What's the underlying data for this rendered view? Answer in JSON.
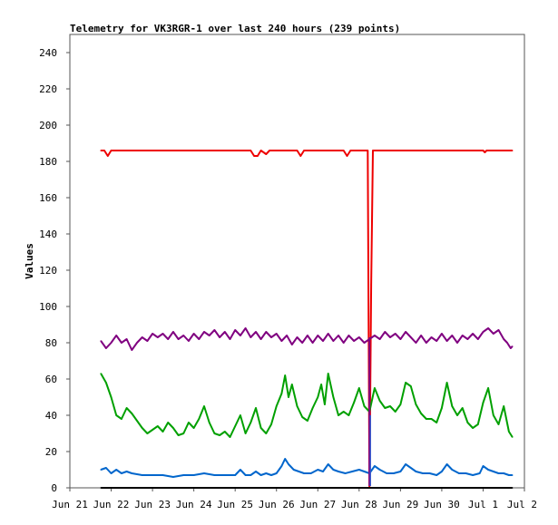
{
  "chart_data": {
    "type": "line",
    "title": "Telemetry for VK3RGR-1 over last 240 hours (239 points)",
    "xlabel": "",
    "ylabel": "Values",
    "ylim": [
      0,
      250
    ],
    "yticks": [
      0,
      20,
      40,
      60,
      80,
      100,
      120,
      140,
      160,
      180,
      200,
      220,
      240
    ],
    "xlim": [
      "2023-06-21",
      "2023-07-02"
    ],
    "xtick_labels": [
      "Jun 21",
      "Jun 22",
      "Jun 23",
      "Jun 24",
      "Jun 25",
      "Jun 26",
      "Jun 27",
      "Jun 28",
      "Jun 29",
      "Jun 30",
      "Jul 1",
      "Jul 2"
    ],
    "grid": false,
    "legend": "none",
    "series": [
      {
        "color": "#ee0000",
        "points": [
          [
            "2023-06-21 18:00",
            186
          ],
          [
            "2023-06-21 20:00",
            186
          ],
          [
            "2023-06-21 22:00",
            183
          ],
          [
            "2023-06-22 00:00",
            186
          ],
          [
            "2023-06-25 09:00",
            186
          ],
          [
            "2023-06-25 11:00",
            183
          ],
          [
            "2023-06-25 13:00",
            183
          ],
          [
            "2023-06-25 15:00",
            186
          ],
          [
            "2023-06-25 18:00",
            184
          ],
          [
            "2023-06-25 20:00",
            186
          ],
          [
            "2023-06-26 12:00",
            186
          ],
          [
            "2023-06-26 14:00",
            183
          ],
          [
            "2023-06-26 16:00",
            186
          ],
          [
            "2023-06-27 15:00",
            186
          ],
          [
            "2023-06-27 17:00",
            183
          ],
          [
            "2023-06-27 19:00",
            186
          ],
          [
            "2023-06-28 05:00",
            186
          ],
          [
            "2023-06-28 06:00",
            0
          ],
          [
            "2023-06-28 07:00",
            112
          ],
          [
            "2023-06-28 08:00",
            186
          ],
          [
            "2023-07-01 00:00",
            186
          ],
          [
            "2023-07-01 01:00",
            185
          ],
          [
            "2023-07-01 02:00",
            186
          ],
          [
            "2023-07-01 17:00",
            186
          ]
        ]
      },
      {
        "color": "#800080",
        "points": [
          [
            "2023-06-21 18:00",
            81
          ],
          [
            "2023-06-21 21:00",
            77
          ],
          [
            "2023-06-22 00:00",
            80
          ],
          [
            "2023-06-22 03:00",
            84
          ],
          [
            "2023-06-22 06:00",
            80
          ],
          [
            "2023-06-22 09:00",
            82
          ],
          [
            "2023-06-22 12:00",
            76
          ],
          [
            "2023-06-22 15:00",
            80
          ],
          [
            "2023-06-22 18:00",
            83
          ],
          [
            "2023-06-22 21:00",
            81
          ],
          [
            "2023-06-23 00:00",
            85
          ],
          [
            "2023-06-23 03:00",
            83
          ],
          [
            "2023-06-23 06:00",
            85
          ],
          [
            "2023-06-23 09:00",
            82
          ],
          [
            "2023-06-23 12:00",
            86
          ],
          [
            "2023-06-23 15:00",
            82
          ],
          [
            "2023-06-23 18:00",
            84
          ],
          [
            "2023-06-23 21:00",
            81
          ],
          [
            "2023-06-24 00:00",
            85
          ],
          [
            "2023-06-24 03:00",
            82
          ],
          [
            "2023-06-24 06:00",
            86
          ],
          [
            "2023-06-24 09:00",
            84
          ],
          [
            "2023-06-24 12:00",
            87
          ],
          [
            "2023-06-24 15:00",
            83
          ],
          [
            "2023-06-24 18:00",
            86
          ],
          [
            "2023-06-24 21:00",
            82
          ],
          [
            "2023-06-25 00:00",
            87
          ],
          [
            "2023-06-25 03:00",
            84
          ],
          [
            "2023-06-25 06:00",
            88
          ],
          [
            "2023-06-25 09:00",
            83
          ],
          [
            "2023-06-25 12:00",
            86
          ],
          [
            "2023-06-25 15:00",
            82
          ],
          [
            "2023-06-25 18:00",
            86
          ],
          [
            "2023-06-25 21:00",
            83
          ],
          [
            "2023-06-26 00:00",
            85
          ],
          [
            "2023-06-26 03:00",
            81
          ],
          [
            "2023-06-26 06:00",
            84
          ],
          [
            "2023-06-26 09:00",
            79
          ],
          [
            "2023-06-26 12:00",
            83
          ],
          [
            "2023-06-26 15:00",
            80
          ],
          [
            "2023-06-26 18:00",
            84
          ],
          [
            "2023-06-26 21:00",
            80
          ],
          [
            "2023-06-27 00:00",
            84
          ],
          [
            "2023-06-27 03:00",
            81
          ],
          [
            "2023-06-27 06:00",
            85
          ],
          [
            "2023-06-27 09:00",
            81
          ],
          [
            "2023-06-27 12:00",
            84
          ],
          [
            "2023-06-27 15:00",
            80
          ],
          [
            "2023-06-27 18:00",
            84
          ],
          [
            "2023-06-27 21:00",
            81
          ],
          [
            "2023-06-28 00:00",
            83
          ],
          [
            "2023-06-28 03:00",
            80
          ],
          [
            "2023-06-28 06:00",
            82
          ],
          [
            "2023-06-28 09:00",
            84
          ],
          [
            "2023-06-28 12:00",
            82
          ],
          [
            "2023-06-28 15:00",
            86
          ],
          [
            "2023-06-28 18:00",
            83
          ],
          [
            "2023-06-28 21:00",
            85
          ],
          [
            "2023-06-29 00:00",
            82
          ],
          [
            "2023-06-29 03:00",
            86
          ],
          [
            "2023-06-29 06:00",
            83
          ],
          [
            "2023-06-29 09:00",
            80
          ],
          [
            "2023-06-29 12:00",
            84
          ],
          [
            "2023-06-29 15:00",
            80
          ],
          [
            "2023-06-29 18:00",
            83
          ],
          [
            "2023-06-29 21:00",
            81
          ],
          [
            "2023-06-30 00:00",
            85
          ],
          [
            "2023-06-30 03:00",
            81
          ],
          [
            "2023-06-30 06:00",
            84
          ],
          [
            "2023-06-30 09:00",
            80
          ],
          [
            "2023-06-30 12:00",
            84
          ],
          [
            "2023-06-30 15:00",
            82
          ],
          [
            "2023-06-30 18:00",
            85
          ],
          [
            "2023-06-30 21:00",
            82
          ],
          [
            "2023-07-01 00:00",
            86
          ],
          [
            "2023-07-01 03:00",
            88
          ],
          [
            "2023-07-01 06:00",
            85
          ],
          [
            "2023-07-01 09:00",
            87
          ],
          [
            "2023-07-01 12:00",
            82
          ],
          [
            "2023-07-01 14:00",
            80
          ],
          [
            "2023-07-01 16:00",
            77
          ],
          [
            "2023-07-01 17:00",
            78
          ]
        ]
      },
      {
        "color": "#00a000",
        "points": [
          [
            "2023-06-21 18:00",
            63
          ],
          [
            "2023-06-21 21:00",
            58
          ],
          [
            "2023-06-22 00:00",
            50
          ],
          [
            "2023-06-22 03:00",
            40
          ],
          [
            "2023-06-22 06:00",
            38
          ],
          [
            "2023-06-22 09:00",
            44
          ],
          [
            "2023-06-22 12:00",
            41
          ],
          [
            "2023-06-22 15:00",
            37
          ],
          [
            "2023-06-22 18:00",
            33
          ],
          [
            "2023-06-22 21:00",
            30
          ],
          [
            "2023-06-23 00:00",
            32
          ],
          [
            "2023-06-23 03:00",
            34
          ],
          [
            "2023-06-23 06:00",
            31
          ],
          [
            "2023-06-23 09:00",
            36
          ],
          [
            "2023-06-23 12:00",
            33
          ],
          [
            "2023-06-23 15:00",
            29
          ],
          [
            "2023-06-23 18:00",
            30
          ],
          [
            "2023-06-23 21:00",
            36
          ],
          [
            "2023-06-24 00:00",
            33
          ],
          [
            "2023-06-24 03:00",
            38
          ],
          [
            "2023-06-24 06:00",
            45
          ],
          [
            "2023-06-24 09:00",
            36
          ],
          [
            "2023-06-24 12:00",
            30
          ],
          [
            "2023-06-24 15:00",
            29
          ],
          [
            "2023-06-24 18:00",
            31
          ],
          [
            "2023-06-24 21:00",
            28
          ],
          [
            "2023-06-25 00:00",
            34
          ],
          [
            "2023-06-25 03:00",
            40
          ],
          [
            "2023-06-25 06:00",
            30
          ],
          [
            "2023-06-25 09:00",
            36
          ],
          [
            "2023-06-25 12:00",
            44
          ],
          [
            "2023-06-25 15:00",
            33
          ],
          [
            "2023-06-25 18:00",
            30
          ],
          [
            "2023-06-25 21:00",
            35
          ],
          [
            "2023-06-26 00:00",
            45
          ],
          [
            "2023-06-26 03:00",
            52
          ],
          [
            "2023-06-26 05:00",
            62
          ],
          [
            "2023-06-26 07:00",
            50
          ],
          [
            "2023-06-26 09:00",
            57
          ],
          [
            "2023-06-26 12:00",
            45
          ],
          [
            "2023-06-26 15:00",
            39
          ],
          [
            "2023-06-26 18:00",
            37
          ],
          [
            "2023-06-26 21:00",
            44
          ],
          [
            "2023-06-27 00:00",
            50
          ],
          [
            "2023-06-27 02:00",
            57
          ],
          [
            "2023-06-27 04:00",
            46
          ],
          [
            "2023-06-27 06:00",
            63
          ],
          [
            "2023-06-27 09:00",
            50
          ],
          [
            "2023-06-27 12:00",
            40
          ],
          [
            "2023-06-27 15:00",
            42
          ],
          [
            "2023-06-27 18:00",
            40
          ],
          [
            "2023-06-27 21:00",
            47
          ],
          [
            "2023-06-28 00:00",
            55
          ],
          [
            "2023-06-28 03:00",
            45
          ],
          [
            "2023-06-28 06:00",
            42
          ],
          [
            "2023-06-28 09:00",
            55
          ],
          [
            "2023-06-28 12:00",
            48
          ],
          [
            "2023-06-28 15:00",
            44
          ],
          [
            "2023-06-28 18:00",
            45
          ],
          [
            "2023-06-28 21:00",
            42
          ],
          [
            "2023-06-29 00:00",
            46
          ],
          [
            "2023-06-29 03:00",
            58
          ],
          [
            "2023-06-29 06:00",
            56
          ],
          [
            "2023-06-29 09:00",
            46
          ],
          [
            "2023-06-29 12:00",
            41
          ],
          [
            "2023-06-29 15:00",
            38
          ],
          [
            "2023-06-29 18:00",
            38
          ],
          [
            "2023-06-29 21:00",
            36
          ],
          [
            "2023-06-30 00:00",
            44
          ],
          [
            "2023-06-30 03:00",
            58
          ],
          [
            "2023-06-30 06:00",
            45
          ],
          [
            "2023-06-30 09:00",
            40
          ],
          [
            "2023-06-30 12:00",
            44
          ],
          [
            "2023-06-30 15:00",
            36
          ],
          [
            "2023-06-30 18:00",
            33
          ],
          [
            "2023-06-30 21:00",
            35
          ],
          [
            "2023-07-01 00:00",
            47
          ],
          [
            "2023-07-01 03:00",
            55
          ],
          [
            "2023-07-01 06:00",
            40
          ],
          [
            "2023-07-01 09:00",
            35
          ],
          [
            "2023-07-01 12:00",
            45
          ],
          [
            "2023-07-01 15:00",
            31
          ],
          [
            "2023-07-01 17:00",
            28
          ]
        ]
      },
      {
        "color": "#0066cc",
        "points": [
          [
            "2023-06-21 18:00",
            10
          ],
          [
            "2023-06-21 21:00",
            11
          ],
          [
            "2023-06-22 00:00",
            8
          ],
          [
            "2023-06-22 03:00",
            10
          ],
          [
            "2023-06-22 06:00",
            8
          ],
          [
            "2023-06-22 09:00",
            9
          ],
          [
            "2023-06-22 12:00",
            8
          ],
          [
            "2023-06-22 18:00",
            7
          ],
          [
            "2023-06-23 00:00",
            7
          ],
          [
            "2023-06-23 06:00",
            7
          ],
          [
            "2023-06-23 12:00",
            6
          ],
          [
            "2023-06-23 18:00",
            7
          ],
          [
            "2023-06-24 00:00",
            7
          ],
          [
            "2023-06-24 06:00",
            8
          ],
          [
            "2023-06-24 12:00",
            7
          ],
          [
            "2023-06-24 18:00",
            7
          ],
          [
            "2023-06-25 00:00",
            7
          ],
          [
            "2023-06-25 03:00",
            10
          ],
          [
            "2023-06-25 06:00",
            7
          ],
          [
            "2023-06-25 09:00",
            7
          ],
          [
            "2023-06-25 12:00",
            9
          ],
          [
            "2023-06-25 15:00",
            7
          ],
          [
            "2023-06-25 18:00",
            8
          ],
          [
            "2023-06-25 21:00",
            7
          ],
          [
            "2023-06-26 00:00",
            8
          ],
          [
            "2023-06-26 03:00",
            12
          ],
          [
            "2023-06-26 05:00",
            16
          ],
          [
            "2023-06-26 07:00",
            13
          ],
          [
            "2023-06-26 10:00",
            10
          ],
          [
            "2023-06-26 13:00",
            9
          ],
          [
            "2023-06-26 16:00",
            8
          ],
          [
            "2023-06-26 20:00",
            8
          ],
          [
            "2023-06-27 00:00",
            10
          ],
          [
            "2023-06-27 03:00",
            9
          ],
          [
            "2023-06-27 06:00",
            13
          ],
          [
            "2023-06-27 09:00",
            10
          ],
          [
            "2023-06-27 12:00",
            9
          ],
          [
            "2023-06-27 16:00",
            8
          ],
          [
            "2023-06-27 20:00",
            9
          ],
          [
            "2023-06-28 00:00",
            10
          ],
          [
            "2023-06-28 03:00",
            9
          ],
          [
            "2023-06-28 06:00",
            8
          ],
          [
            "2023-06-28 09:00",
            12
          ],
          [
            "2023-06-28 12:00",
            10
          ],
          [
            "2023-06-28 16:00",
            8
          ],
          [
            "2023-06-28 20:00",
            8
          ],
          [
            "2023-06-29 00:00",
            9
          ],
          [
            "2023-06-29 03:00",
            13
          ],
          [
            "2023-06-29 06:00",
            11
          ],
          [
            "2023-06-29 09:00",
            9
          ],
          [
            "2023-06-29 13:00",
            8
          ],
          [
            "2023-06-29 17:00",
            8
          ],
          [
            "2023-06-29 21:00",
            7
          ],
          [
            "2023-06-30 00:00",
            9
          ],
          [
            "2023-06-30 03:00",
            13
          ],
          [
            "2023-06-30 06:00",
            10
          ],
          [
            "2023-06-30 10:00",
            8
          ],
          [
            "2023-06-30 14:00",
            8
          ],
          [
            "2023-06-30 18:00",
            7
          ],
          [
            "2023-06-30 22:00",
            8
          ],
          [
            "2023-07-01 00:00",
            12
          ],
          [
            "2023-07-01 03:00",
            10
          ],
          [
            "2023-07-01 06:00",
            9
          ],
          [
            "2023-07-01 09:00",
            8
          ],
          [
            "2023-07-01 12:00",
            8
          ],
          [
            "2023-07-01 15:00",
            7
          ],
          [
            "2023-07-01 17:00",
            7
          ]
        ]
      },
      {
        "color": "#000000",
        "points": [
          [
            "2023-06-21 18:00",
            0
          ],
          [
            "2023-07-01 17:00",
            0
          ]
        ]
      }
    ]
  }
}
